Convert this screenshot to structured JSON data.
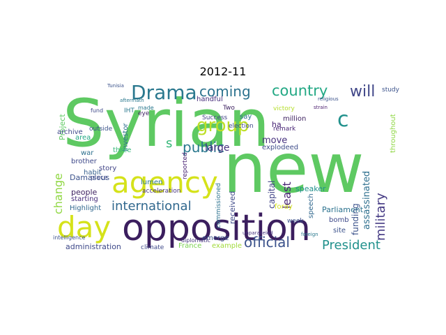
{
  "figure": {
    "title": "2012-11"
  },
  "word_cloud": {
    "words": [
      {
        "text": "Syrian",
        "color": "#5ec962"
      },
      {
        "text": "new",
        "color": "#5ec962"
      },
      {
        "text": "opposition",
        "color": "#3b1e5e"
      },
      {
        "text": "agency",
        "color": "#d5e21a"
      },
      {
        "text": "day",
        "color": "#d5e21a"
      },
      {
        "text": "Drama",
        "color": "#2a788e"
      },
      {
        "text": "country",
        "color": "#22a884"
      },
      {
        "text": "coming",
        "color": "#2c728e"
      },
      {
        "text": "group",
        "color": "#bddf26"
      },
      {
        "text": "international",
        "color": "#31688e"
      },
      {
        "text": "official",
        "color": "#3b528b"
      },
      {
        "text": "President",
        "color": "#21918c"
      },
      {
        "text": "military",
        "color": "#443983"
      },
      {
        "text": "public",
        "color": "#2a788e"
      },
      {
        "text": "will",
        "color": "#404688"
      },
      {
        "text": "change",
        "color": "#90d743"
      },
      {
        "text": "c",
        "color": "#21918c"
      },
      {
        "text": "s",
        "color": "#35b779"
      },
      {
        "text": "least",
        "color": "#482374"
      },
      {
        "text": "capital",
        "color": "#414487"
      },
      {
        "text": "received",
        "color": "#3e4989"
      },
      {
        "text": "large",
        "color": "#472f7d"
      },
      {
        "text": "move",
        "color": "#46307e"
      },
      {
        "text": "assassinated",
        "color": "#2e6f8e"
      },
      {
        "text": "funding",
        "color": "#3b528b"
      },
      {
        "text": "Parliament",
        "color": "#2c728e"
      },
      {
        "text": "speaker",
        "color": "#21918c"
      },
      {
        "text": "Damascus",
        "color": "#3b528b"
      },
      {
        "text": "people",
        "color": "#3b1e5e"
      },
      {
        "text": "brother",
        "color": "#3e4989"
      },
      {
        "text": "habit",
        "color": "#355f8d"
      },
      {
        "text": "war",
        "color": "#2d708e"
      },
      {
        "text": "story",
        "color": "#414487"
      },
      {
        "text": "starting",
        "color": "#472d7b"
      },
      {
        "text": "Highlight",
        "color": "#31688e"
      },
      {
        "text": "administration",
        "color": "#3e4989"
      },
      {
        "text": "France",
        "color": "#7ad151"
      },
      {
        "text": "example",
        "color": "#a0da39"
      },
      {
        "text": "lumen",
        "color": "#2a788e"
      },
      {
        "text": "acceleration",
        "color": "#46337e"
      },
      {
        "text": "emerge",
        "color": "#3b528b"
      },
      {
        "text": "explodeed",
        "color": "#3e4c8a"
      },
      {
        "text": "throughout",
        "color": "#8fd744"
      },
      {
        "text": "million",
        "color": "#3b1e5e"
      },
      {
        "text": "remark",
        "color": "#482475"
      },
      {
        "text": "speech",
        "color": "#31688e"
      },
      {
        "text": "site",
        "color": "#3b528b"
      },
      {
        "text": "bomb",
        "color": "#3e4989"
      },
      {
        "text": "foray",
        "color": "#d5e21a"
      },
      {
        "text": "Project",
        "color": "#5ec962"
      },
      {
        "text": "archive",
        "color": "#3e4989"
      },
      {
        "text": "area",
        "color": "#22a884"
      },
      {
        "text": "investor",
        "color": "#2e6e8e"
      },
      {
        "text": "outside",
        "color": "#3b528b"
      },
      {
        "text": "three",
        "color": "#35b779"
      },
      {
        "text": "handful",
        "color": "#472d7b"
      },
      {
        "text": "Success",
        "color": "#414487"
      },
      {
        "text": "Two",
        "color": "#3b1e5e"
      },
      {
        "text": "victory",
        "color": "#b5de2b"
      },
      {
        "text": "reported",
        "color": "#482173"
      },
      {
        "text": "commissioned",
        "color": "#2c728e"
      },
      {
        "text": "ha",
        "color": "#482475"
      },
      {
        "text": "IHT",
        "color": "#2a788e"
      },
      {
        "text": "say",
        "color": "#2c728e"
      },
      {
        "text": "election",
        "color": "#3e4989"
      },
      {
        "text": "week",
        "color": "#3b528b"
      },
      {
        "text": "intelligence",
        "color": "#3b528b"
      },
      {
        "text": "climate",
        "color": "#3e4989"
      },
      {
        "text": "diplomatic",
        "color": "#46337e"
      },
      {
        "text": "study",
        "color": "#3b528b"
      },
      {
        "text": "made",
        "color": "#2a788e"
      },
      {
        "text": "eye",
        "color": "#3b1e5e"
      },
      {
        "text": "fund",
        "color": "#3e4989"
      },
      {
        "text": "aftermath",
        "color": "#2a788e"
      },
      {
        "text": "Tunisia",
        "color": "#3b528b"
      },
      {
        "text": "religious",
        "color": "#3b528b"
      },
      {
        "text": "unparalleled",
        "color": "#46327e"
      },
      {
        "text": "place",
        "color": "#3e4989"
      },
      {
        "text": "strain",
        "color": "#481a6c"
      },
      {
        "text": "foreign",
        "color": "#2a788e"
      }
    ]
  }
}
